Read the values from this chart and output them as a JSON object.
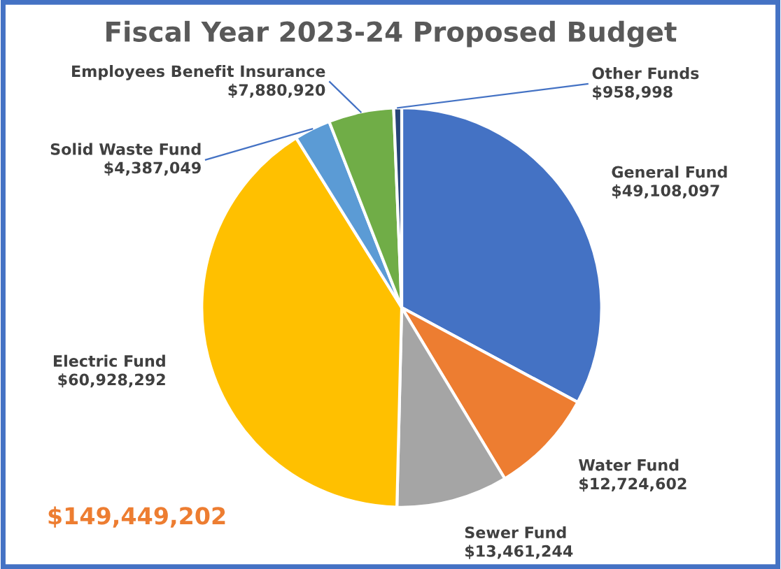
{
  "chart_data": {
    "type": "pie",
    "title": "Fiscal Year 2023-24 Proposed Budget",
    "categories": [
      "General Fund",
      "Water Fund",
      "Sewer Fund",
      "Electric Fund",
      "Solid Waste Fund",
      "Employees Benefit Insurance",
      "Other Funds"
    ],
    "values": [
      49108097,
      12724602,
      13461244,
      60928292,
      4387049,
      7880920,
      958998
    ],
    "value_labels": [
      "$49,108,097",
      "$12,724,602",
      "$13,461,244",
      "$60,928,292",
      "$4,387,049",
      "$7,880,920",
      "$958,998"
    ],
    "colors": [
      "#4472c4",
      "#ed7d31",
      "#a5a5a5",
      "#ffc000",
      "#5b9bd5",
      "#70ad47",
      "#264478"
    ],
    "annotations": [
      "$149,449,202"
    ],
    "legend": false
  }
}
